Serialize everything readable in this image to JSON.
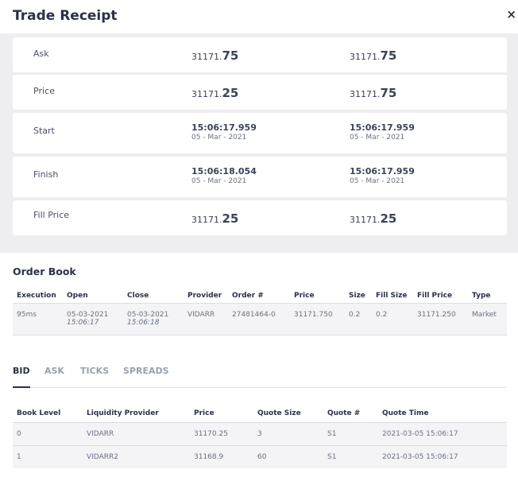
{
  "header": {
    "title": "Trade Receipt",
    "close_icon": "×"
  },
  "summary": {
    "ask": {
      "label": "Ask",
      "v1_base": "31171.",
      "v1_big": "75",
      "v2_base": "31171.",
      "v2_big": "75"
    },
    "price": {
      "label": "Price",
      "v1_base": "31171.",
      "v1_big": "25",
      "v2_base": "31171.",
      "v2_big": "75"
    },
    "start": {
      "label": "Start",
      "v1_time": "15:06:17.959",
      "v1_date": "05 - Mar - 2021",
      "v2_time": "15:06:17.959",
      "v2_date": "05 - Mar - 2021"
    },
    "finish": {
      "label": "Finish",
      "v1_time": "15:06:18.054",
      "v1_date": "05 - Mar - 2021",
      "v2_time": "15:06:17.959",
      "v2_date": "05 - Mar - 2021"
    },
    "fill_price": {
      "label": "Fill Price",
      "v1_base": "31171.",
      "v1_big": "25",
      "v2_base": "31171.",
      "v2_big": "25"
    }
  },
  "order_book": {
    "title": "Order Book",
    "headers": [
      "Execution",
      "Open",
      "Close",
      "Provider",
      "Order #",
      "Price",
      "Size",
      "Fill Size",
      "Fill Price",
      "Type"
    ],
    "row": {
      "execution": "95ms",
      "open_date": "05-03-2021",
      "open_time": "15:06:17",
      "close_date": "05-03-2021",
      "close_time": "15:06:18",
      "provider": "VIDARR",
      "order_no": "27481464-0",
      "price": "31171.750",
      "size": "0.2",
      "fill_size": "0.2",
      "fill_price": "31171.250",
      "type": "Market"
    }
  },
  "tabs": [
    "BID",
    "ASK",
    "TICKS",
    "SPREADS"
  ],
  "book": {
    "headers": [
      "Book Level",
      "Liquidity Provider",
      "Price",
      "Quote Size",
      "Quote #",
      "Quote Time"
    ],
    "rows": [
      [
        "0",
        "VIDARR",
        "31170.25",
        "3",
        "S1",
        "2021-03-05 15:06:17"
      ],
      [
        "1",
        "VIDARR2",
        "31168.9",
        "60",
        "S1",
        "2021-03-05 15:06:17"
      ]
    ]
  }
}
